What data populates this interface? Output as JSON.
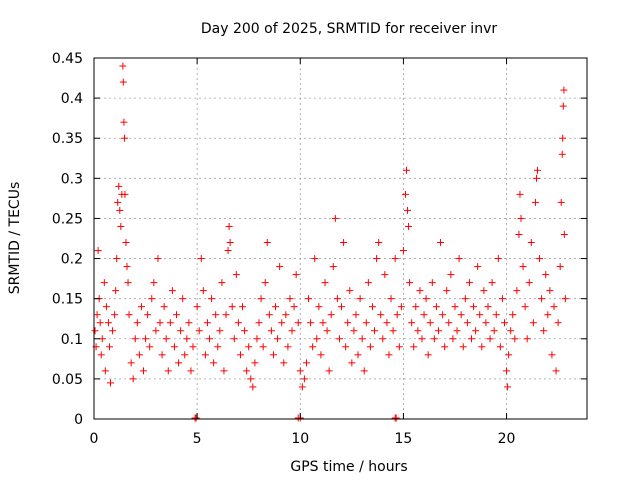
{
  "chart_data": {
    "type": "scatter",
    "title": "Day 200 of 2025, SRMTID for receiver invr",
    "xlabel": "GPS time / hours",
    "ylabel": "SRMTID / TECUs",
    "xlim": [
      0,
      23.9
    ],
    "ylim": [
      0,
      0.45
    ],
    "x_ticks": [
      0,
      5,
      10,
      15,
      20
    ],
    "x_tick_labels": [
      "0",
      "5",
      "10",
      "15",
      "20"
    ],
    "y_ticks": [
      0,
      0.05,
      0.1,
      0.15,
      0.2,
      0.25,
      0.3,
      0.35,
      0.4,
      0.45
    ],
    "y_tick_labels": [
      "0",
      "0.05",
      "0.1",
      "0.15",
      "0.2",
      "0.25",
      "0.3",
      "0.35",
      "0.4",
      "0.45"
    ],
    "grid": true,
    "marker": "plus",
    "color": "#ff0000",
    "zero_points_x": [
      4.9,
      4.95,
      9.9,
      10.0,
      14.6,
      14.65
    ],
    "series": [
      {
        "points": [
          [
            0.05,
            0.11
          ],
          [
            0.1,
            0.09
          ],
          [
            0.15,
            0.13
          ],
          [
            0.2,
            0.21
          ],
          [
            0.25,
            0.15
          ],
          [
            0.3,
            0.12
          ],
          [
            0.35,
            0.08
          ],
          [
            0.4,
            0.1
          ],
          [
            0.5,
            0.17
          ],
          [
            0.55,
            0.06
          ],
          [
            0.6,
            0.14
          ],
          [
            0.7,
            0.12
          ],
          [
            0.75,
            0.09
          ],
          [
            0.8,
            0.045
          ],
          [
            0.9,
            0.11
          ],
          [
            1.0,
            0.13
          ],
          [
            1.05,
            0.16
          ],
          [
            1.1,
            0.2
          ],
          [
            1.15,
            0.27
          ],
          [
            1.2,
            0.29
          ],
          [
            1.25,
            0.26
          ],
          [
            1.3,
            0.24
          ],
          [
            1.35,
            0.28
          ],
          [
            1.4,
            0.44
          ],
          [
            1.42,
            0.42
          ],
          [
            1.45,
            0.37
          ],
          [
            1.48,
            0.35
          ],
          [
            1.5,
            0.28
          ],
          [
            1.55,
            0.22
          ],
          [
            1.6,
            0.19
          ],
          [
            1.65,
            0.17
          ],
          [
            1.7,
            0.13
          ],
          [
            1.8,
            0.07
          ],
          [
            1.9,
            0.05
          ],
          [
            2.0,
            0.1
          ],
          [
            2.1,
            0.12
          ],
          [
            2.2,
            0.08
          ],
          [
            2.3,
            0.14
          ],
          [
            2.4,
            0.06
          ],
          [
            2.5,
            0.1
          ],
          [
            2.6,
            0.13
          ],
          [
            2.7,
            0.09
          ],
          [
            2.8,
            0.15
          ],
          [
            2.9,
            0.17
          ],
          [
            3.0,
            0.11
          ],
          [
            3.1,
            0.2
          ],
          [
            3.2,
            0.12
          ],
          [
            3.3,
            0.08
          ],
          [
            3.4,
            0.14
          ],
          [
            3.5,
            0.1
          ],
          [
            3.6,
            0.06
          ],
          [
            3.7,
            0.12
          ],
          [
            3.8,
            0.16
          ],
          [
            3.9,
            0.09
          ],
          [
            4.0,
            0.13
          ],
          [
            4.1,
            0.07
          ],
          [
            4.2,
            0.11
          ],
          [
            4.3,
            0.15
          ],
          [
            4.4,
            0.08
          ],
          [
            4.5,
            0.1
          ],
          [
            4.6,
            0.12
          ],
          [
            4.7,
            0.06
          ],
          [
            4.8,
            0.09
          ],
          [
            5.0,
            0.14
          ],
          [
            5.1,
            0.11
          ],
          [
            5.2,
            0.2
          ],
          [
            5.3,
            0.16
          ],
          [
            5.4,
            0.08
          ],
          [
            5.5,
            0.12
          ],
          [
            5.6,
            0.1
          ],
          [
            5.7,
            0.15
          ],
          [
            5.8,
            0.07
          ],
          [
            5.9,
            0.13
          ],
          [
            6.0,
            0.09
          ],
          [
            6.1,
            0.11
          ],
          [
            6.2,
            0.17
          ],
          [
            6.3,
            0.06
          ],
          [
            6.4,
            0.13
          ],
          [
            6.5,
            0.21
          ],
          [
            6.55,
            0.24
          ],
          [
            6.6,
            0.22
          ],
          [
            6.7,
            0.14
          ],
          [
            6.8,
            0.1
          ],
          [
            6.9,
            0.18
          ],
          [
            7.0,
            0.12
          ],
          [
            7.1,
            0.08
          ],
          [
            7.2,
            0.14
          ],
          [
            7.3,
            0.11
          ],
          [
            7.4,
            0.06
          ],
          [
            7.5,
            0.09
          ],
          [
            7.6,
            0.05
          ],
          [
            7.7,
            0.04
          ],
          [
            7.8,
            0.07
          ],
          [
            7.9,
            0.1
          ],
          [
            8.0,
            0.12
          ],
          [
            8.1,
            0.15
          ],
          [
            8.2,
            0.09
          ],
          [
            8.3,
            0.17
          ],
          [
            8.4,
            0.22
          ],
          [
            8.5,
            0.13
          ],
          [
            8.6,
            0.11
          ],
          [
            8.7,
            0.08
          ],
          [
            8.8,
            0.14
          ],
          [
            8.9,
            0.1
          ],
          [
            9.0,
            0.19
          ],
          [
            9.1,
            0.12
          ],
          [
            9.2,
            0.07
          ],
          [
            9.3,
            0.13
          ],
          [
            9.4,
            0.09
          ],
          [
            9.5,
            0.15
          ],
          [
            9.6,
            0.11
          ],
          [
            9.7,
            0.14
          ],
          [
            9.8,
            0.18
          ],
          [
            9.9,
            0.12
          ],
          [
            10.0,
            0.06
          ],
          [
            10.1,
            0.04
          ],
          [
            10.2,
            0.05
          ],
          [
            10.3,
            0.07
          ],
          [
            10.4,
            0.15
          ],
          [
            10.5,
            0.12
          ],
          [
            10.6,
            0.09
          ],
          [
            10.7,
            0.2
          ],
          [
            10.8,
            0.1
          ],
          [
            10.9,
            0.14
          ],
          [
            11.0,
            0.08
          ],
          [
            11.1,
            0.12
          ],
          [
            11.2,
            0.17
          ],
          [
            11.3,
            0.11
          ],
          [
            11.4,
            0.06
          ],
          [
            11.5,
            0.13
          ],
          [
            11.6,
            0.19
          ],
          [
            11.7,
            0.25
          ],
          [
            11.8,
            0.15
          ],
          [
            11.9,
            0.1
          ],
          [
            12.0,
            0.14
          ],
          [
            12.1,
            0.22
          ],
          [
            12.2,
            0.09
          ],
          [
            12.3,
            0.12
          ],
          [
            12.4,
            0.16
          ],
          [
            12.5,
            0.07
          ],
          [
            12.6,
            0.11
          ],
          [
            12.7,
            0.13
          ],
          [
            12.8,
            0.08
          ],
          [
            12.9,
            0.15
          ],
          [
            13.0,
            0.1
          ],
          [
            13.1,
            0.06
          ],
          [
            13.2,
            0.12
          ],
          [
            13.3,
            0.17
          ],
          [
            13.4,
            0.09
          ],
          [
            13.5,
            0.14
          ],
          [
            13.6,
            0.11
          ],
          [
            13.7,
            0.2
          ],
          [
            13.8,
            0.22
          ],
          [
            13.9,
            0.13
          ],
          [
            14.0,
            0.1
          ],
          [
            14.1,
            0.18
          ],
          [
            14.2,
            0.12
          ],
          [
            14.3,
            0.08
          ],
          [
            14.4,
            0.15
          ],
          [
            14.5,
            0.11
          ],
          [
            14.6,
            0.2
          ],
          [
            14.7,
            0.13
          ],
          [
            14.8,
            0.09
          ],
          [
            14.9,
            0.14
          ],
          [
            15.0,
            0.21
          ],
          [
            15.1,
            0.28
          ],
          [
            15.15,
            0.31
          ],
          [
            15.2,
            0.26
          ],
          [
            15.25,
            0.24
          ],
          [
            15.3,
            0.17
          ],
          [
            15.4,
            0.12
          ],
          [
            15.5,
            0.09
          ],
          [
            15.6,
            0.14
          ],
          [
            15.7,
            0.11
          ],
          [
            15.8,
            0.16
          ],
          [
            15.9,
            0.1
          ],
          [
            16.0,
            0.13
          ],
          [
            16.1,
            0.15
          ],
          [
            16.2,
            0.08
          ],
          [
            16.3,
            0.12
          ],
          [
            16.4,
            0.17
          ],
          [
            16.5,
            0.1
          ],
          [
            16.6,
            0.14
          ],
          [
            16.7,
            0.11
          ],
          [
            16.8,
            0.22
          ],
          [
            16.9,
            0.13
          ],
          [
            17.0,
            0.09
          ],
          [
            17.1,
            0.16
          ],
          [
            17.2,
            0.12
          ],
          [
            17.3,
            0.18
          ],
          [
            17.4,
            0.1
          ],
          [
            17.5,
            0.14
          ],
          [
            17.6,
            0.11
          ],
          [
            17.7,
            0.2
          ],
          [
            17.8,
            0.13
          ],
          [
            17.9,
            0.09
          ],
          [
            18.0,
            0.15
          ],
          [
            18.1,
            0.12
          ],
          [
            18.2,
            0.17
          ],
          [
            18.3,
            0.1
          ],
          [
            18.4,
            0.14
          ],
          [
            18.5,
            0.11
          ],
          [
            18.6,
            0.19
          ],
          [
            18.7,
            0.13
          ],
          [
            18.8,
            0.09
          ],
          [
            18.9,
            0.16
          ],
          [
            19.0,
            0.12
          ],
          [
            19.1,
            0.14
          ],
          [
            19.2,
            0.1
          ],
          [
            19.3,
            0.17
          ],
          [
            19.4,
            0.11
          ],
          [
            19.5,
            0.13
          ],
          [
            19.6,
            0.2
          ],
          [
            19.7,
            0.09
          ],
          [
            19.8,
            0.15
          ],
          [
            19.9,
            0.12
          ],
          [
            20.0,
            0.06
          ],
          [
            20.05,
            0.04
          ],
          [
            20.1,
            0.08
          ],
          [
            20.2,
            0.11
          ],
          [
            20.3,
            0.13
          ],
          [
            20.4,
            0.1
          ],
          [
            20.5,
            0.16
          ],
          [
            20.6,
            0.23
          ],
          [
            20.65,
            0.28
          ],
          [
            20.7,
            0.25
          ],
          [
            20.8,
            0.19
          ],
          [
            20.9,
            0.14
          ],
          [
            21.0,
            0.1
          ],
          [
            21.1,
            0.17
          ],
          [
            21.2,
            0.22
          ],
          [
            21.3,
            0.12
          ],
          [
            21.4,
            0.27
          ],
          [
            21.45,
            0.3
          ],
          [
            21.5,
            0.31
          ],
          [
            21.6,
            0.2
          ],
          [
            21.7,
            0.15
          ],
          [
            21.8,
            0.11
          ],
          [
            21.9,
            0.18
          ],
          [
            22.0,
            0.13
          ],
          [
            22.1,
            0.16
          ],
          [
            22.2,
            0.08
          ],
          [
            22.3,
            0.14
          ],
          [
            22.4,
            0.06
          ],
          [
            22.5,
            0.12
          ],
          [
            22.6,
            0.19
          ],
          [
            22.65,
            0.27
          ],
          [
            22.7,
            0.33
          ],
          [
            22.72,
            0.35
          ],
          [
            22.75,
            0.39
          ],
          [
            22.78,
            0.41
          ],
          [
            22.8,
            0.23
          ],
          [
            22.85,
            0.15
          ]
        ]
      }
    ]
  }
}
